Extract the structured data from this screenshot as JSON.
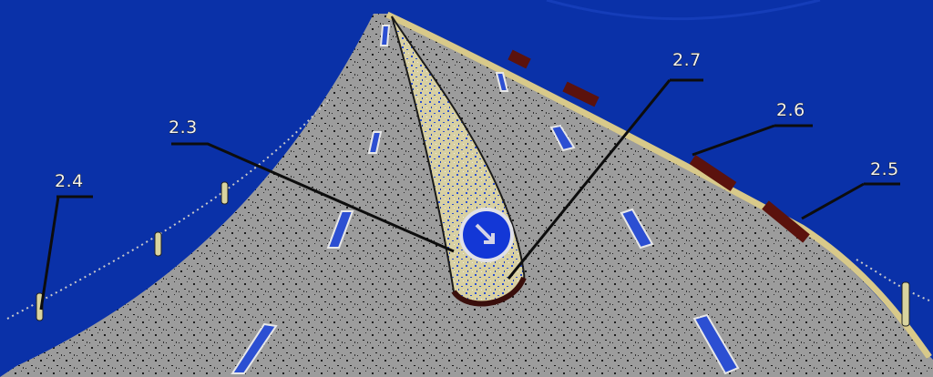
{
  "labels": {
    "l_2_3": "2.3",
    "l_2_4": "2.4",
    "l_2_5": "2.5",
    "l_2_6": "2.6",
    "l_2_7": "2.7"
  },
  "colors": {
    "background": "#0a31a8",
    "road": "#9c9c9c",
    "island": "#d9d2a5",
    "sign": "#1337d6",
    "kerb": "#6b1a12",
    "leader": "#0d0d0d"
  },
  "icons": {
    "sign": "keep-left-arrow-icon"
  }
}
